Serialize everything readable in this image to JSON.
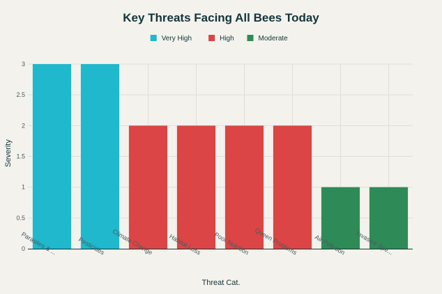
{
  "chart_data": {
    "type": "bar",
    "title": "Key Threats Facing All Bees Today",
    "xlabel": "Threat Cat.",
    "ylabel": "Severity",
    "ylim": [
      0,
      3
    ],
    "yticks": [
      "0",
      "0.5",
      "1",
      "1.5",
      "2",
      "2.5",
      "3"
    ],
    "grid": true,
    "legend_position": "top-center",
    "legend": [
      {
        "name": "Very High",
        "color": "#1fb8cd"
      },
      {
        "name": "High",
        "color": "#db4545"
      },
      {
        "name": "Moderate",
        "color": "#2e8b57"
      }
    ],
    "categories": [
      "Parasites & ...",
      "Pesticides",
      "Climate Change",
      "Habitat Loss",
      "Poor Nutrition",
      "Queen Problems",
      "Air Pollution",
      "Invasive Spe..."
    ],
    "values": [
      3,
      3,
      2,
      2,
      2,
      2,
      1,
      1
    ],
    "levels": [
      "Very High",
      "Very High",
      "High",
      "High",
      "High",
      "High",
      "Moderate",
      "Moderate"
    ]
  }
}
